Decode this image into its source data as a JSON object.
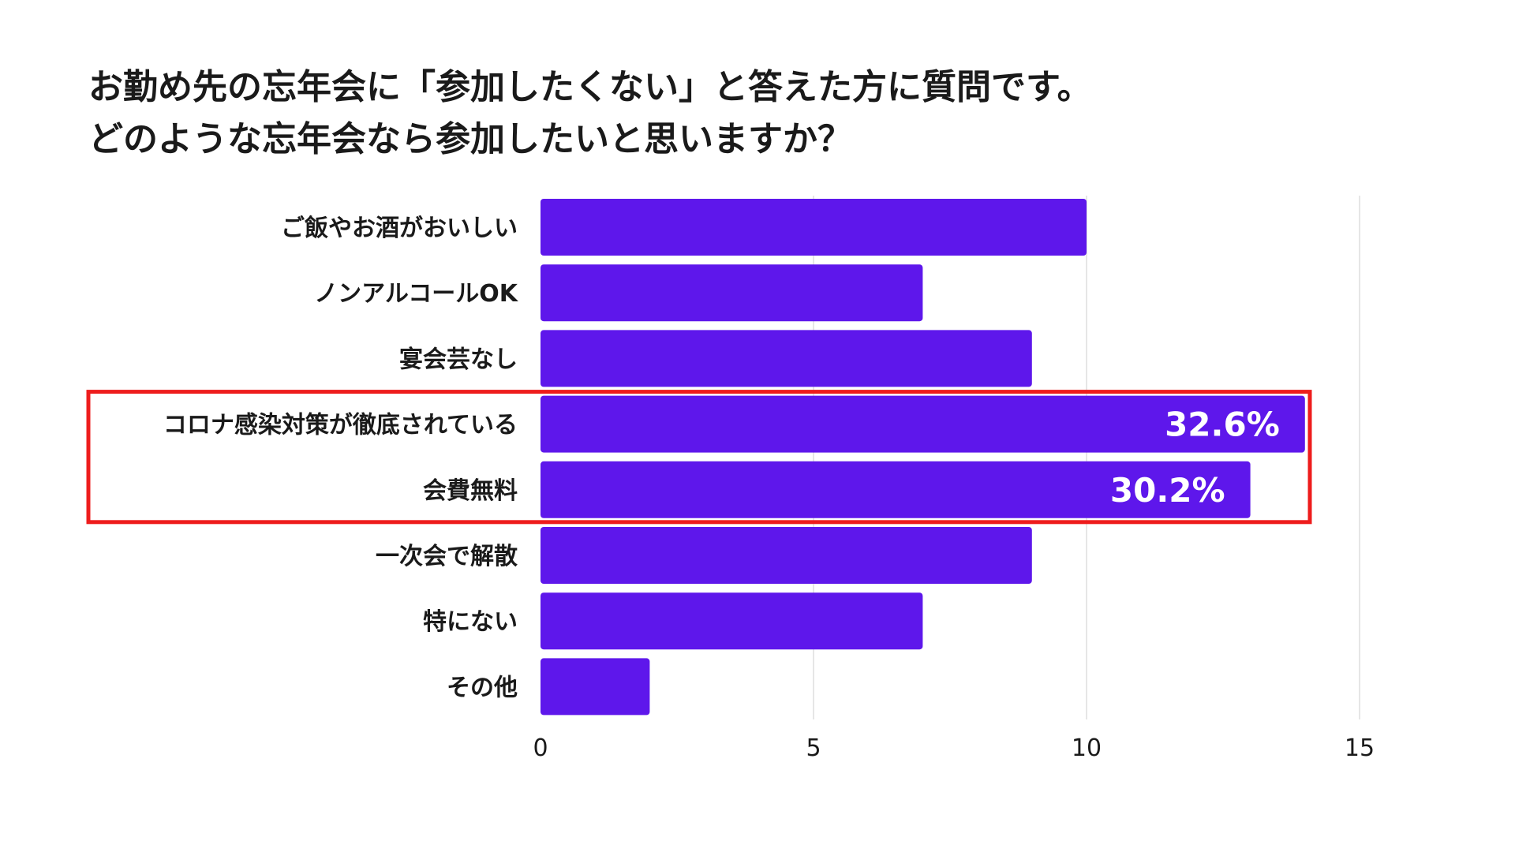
{
  "title_lines": [
    "お勤め先の忘年会に「参加したくない」と答えた方に質問です。",
    "どのような忘年会なら参加したいと思いますか？"
  ],
  "colors": {
    "bar": "#5e17eb",
    "highlight_box": "#ee1c1c",
    "grid": "#dedede",
    "text": "#1a1a1a",
    "bar_label": "#ffffff"
  },
  "chart_data": {
    "type": "bar",
    "orientation": "horizontal",
    "title": "お勤め先の忘年会に「参加したくない」と答えた方に質問です。どのような忘年会なら参加したいと思いますか？",
    "categories": [
      "ご飯やお酒がおいしい",
      "ノンアルコールOK",
      "宴会芸なし",
      "コロナ感染対策が徹底されている",
      "会費無料",
      "一次会で解散",
      "特にない",
      "その他"
    ],
    "values": [
      10,
      7,
      9,
      14,
      13,
      9,
      7,
      2
    ],
    "data_labels": [
      "",
      "",
      "",
      "32.6%",
      "30.2%",
      "",
      "",
      ""
    ],
    "highlighted": [
      "コロナ感染対策が徹底されている",
      "会費無料"
    ],
    "x_ticks": [
      0,
      5,
      10,
      15
    ],
    "xlim": [
      0,
      15
    ],
    "xlabel": "",
    "ylabel": "",
    "grid": "vertical",
    "legend": "none"
  }
}
